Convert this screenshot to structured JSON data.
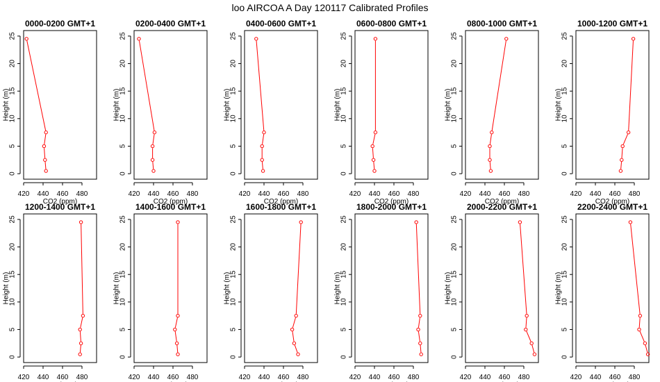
{
  "figure": {
    "title": "loo AIRCOA A  Day 120117  Calibrated Profiles"
  },
  "style": {
    "line_color": "#ff0000",
    "point_color": "#ff0000",
    "axis_color": "#000000"
  },
  "chart_data": [
    {
      "type": "line",
      "title": "0000-0200 GMT+1",
      "xlabel": "CO2 (ppm)",
      "ylabel": "Height (m)",
      "xlim": [
        420,
        495
      ],
      "ylim": [
        -1,
        26
      ],
      "xticks": [
        420,
        440,
        460,
        480
      ],
      "yticks": [
        0,
        5,
        10,
        15,
        20,
        25
      ],
      "points": [
        {
          "x": 443,
          "y": 0.5
        },
        {
          "x": 442,
          "y": 2.5
        },
        {
          "x": 441,
          "y": 5
        },
        {
          "x": 443,
          "y": 7.5
        },
        {
          "x": 423,
          "y": 24.5
        }
      ]
    },
    {
      "type": "line",
      "title": "0200-0400 GMT+1",
      "xlabel": "CO2 (ppm)",
      "ylabel": "Height (m)",
      "xlim": [
        420,
        495
      ],
      "ylim": [
        -1,
        26
      ],
      "xticks": [
        420,
        440,
        460,
        480
      ],
      "yticks": [
        0,
        5,
        10,
        15,
        20,
        25
      ],
      "points": [
        {
          "x": 440,
          "y": 0.5
        },
        {
          "x": 439,
          "y": 2.5
        },
        {
          "x": 439,
          "y": 5
        },
        {
          "x": 441,
          "y": 7.5
        },
        {
          "x": 425,
          "y": 24.5
        }
      ]
    },
    {
      "type": "line",
      "title": "0400-0600 GMT+1",
      "xlabel": "CO2 (ppm)",
      "ylabel": "Height (m)",
      "xlim": [
        420,
        495
      ],
      "ylim": [
        -1,
        26
      ],
      "xticks": [
        420,
        440,
        460,
        480
      ],
      "yticks": [
        0,
        5,
        10,
        15,
        20,
        25
      ],
      "points": [
        {
          "x": 439,
          "y": 0.5
        },
        {
          "x": 438,
          "y": 2.5
        },
        {
          "x": 438,
          "y": 5
        },
        {
          "x": 440,
          "y": 7.5
        },
        {
          "x": 432,
          "y": 24.5
        }
      ]
    },
    {
      "type": "line",
      "title": "0600-0800 GMT+1",
      "xlabel": "CO2 (ppm)",
      "ylabel": "Height (m)",
      "xlim": [
        420,
        495
      ],
      "ylim": [
        -1,
        26
      ],
      "xticks": [
        420,
        440,
        460,
        480
      ],
      "yticks": [
        0,
        5,
        10,
        15,
        20,
        25
      ],
      "points": [
        {
          "x": 440,
          "y": 0.5
        },
        {
          "x": 439,
          "y": 2.5
        },
        {
          "x": 438,
          "y": 5
        },
        {
          "x": 441,
          "y": 7.5
        },
        {
          "x": 441,
          "y": 24.5
        }
      ]
    },
    {
      "type": "line",
      "title": "0800-1000 GMT+1",
      "xlabel": "CO2 (ppm)",
      "ylabel": "Height (m)",
      "xlim": [
        420,
        495
      ],
      "ylim": [
        -1,
        26
      ],
      "xticks": [
        420,
        440,
        460,
        480
      ],
      "yticks": [
        0,
        5,
        10,
        15,
        20,
        25
      ],
      "points": [
        {
          "x": 446,
          "y": 0.5
        },
        {
          "x": 445,
          "y": 2.5
        },
        {
          "x": 445,
          "y": 5
        },
        {
          "x": 447,
          "y": 7.5
        },
        {
          "x": 462,
          "y": 24.5
        }
      ]
    },
    {
      "type": "line",
      "title": "1000-1200 GMT+1",
      "xlabel": "CO2 (ppm)",
      "ylabel": "Height (m)",
      "xlim": [
        420,
        495
      ],
      "ylim": [
        -1,
        26
      ],
      "xticks": [
        420,
        440,
        460,
        480
      ],
      "yticks": [
        0,
        5,
        10,
        15,
        20,
        25
      ],
      "points": [
        {
          "x": 466,
          "y": 0.5
        },
        {
          "x": 467,
          "y": 2.5
        },
        {
          "x": 468,
          "y": 5
        },
        {
          "x": 474,
          "y": 7.5
        },
        {
          "x": 479,
          "y": 24.5
        }
      ]
    },
    {
      "type": "line",
      "title": "1200-1400 GMT+1",
      "xlabel": "CO2 (ppm)",
      "ylabel": "Height (m)",
      "xlim": [
        420,
        495
      ],
      "ylim": [
        -1,
        26
      ],
      "xticks": [
        420,
        440,
        460,
        480
      ],
      "yticks": [
        0,
        5,
        10,
        15,
        20,
        25
      ],
      "points": [
        {
          "x": 478,
          "y": 0.5
        },
        {
          "x": 479,
          "y": 2.5
        },
        {
          "x": 478,
          "y": 5
        },
        {
          "x": 481,
          "y": 7.5
        },
        {
          "x": 479,
          "y": 24.5
        }
      ]
    },
    {
      "type": "line",
      "title": "1400-1600 GMT+1",
      "xlabel": "CO2 (ppm)",
      "ylabel": "Height (m)",
      "xlim": [
        420,
        495
      ],
      "ylim": [
        -1,
        26
      ],
      "xticks": [
        420,
        440,
        460,
        480
      ],
      "yticks": [
        0,
        5,
        10,
        15,
        20,
        25
      ],
      "points": [
        {
          "x": 465,
          "y": 0.5
        },
        {
          "x": 464,
          "y": 2.5
        },
        {
          "x": 462,
          "y": 5
        },
        {
          "x": 465,
          "y": 7.5
        },
        {
          "x": 465,
          "y": 24.5
        }
      ]
    },
    {
      "type": "line",
      "title": "1600-1800 GMT+1",
      "xlabel": "CO2 (ppm)",
      "ylabel": "Height (m)",
      "xlim": [
        420,
        495
      ],
      "ylim": [
        -1,
        26
      ],
      "xticks": [
        420,
        440,
        460,
        480
      ],
      "yticks": [
        0,
        5,
        10,
        15,
        20,
        25
      ],
      "points": [
        {
          "x": 475,
          "y": 0.5
        },
        {
          "x": 471,
          "y": 2.5
        },
        {
          "x": 469,
          "y": 5
        },
        {
          "x": 473,
          "y": 7.5
        },
        {
          "x": 478,
          "y": 24.5
        }
      ]
    },
    {
      "type": "line",
      "title": "1800-2000 GMT+1",
      "xlabel": "CO2 (ppm)",
      "ylabel": "Height (m)",
      "xlim": [
        420,
        495
      ],
      "ylim": [
        -1,
        26
      ],
      "xticks": [
        420,
        440,
        460,
        480
      ],
      "yticks": [
        0,
        5,
        10,
        15,
        20,
        25
      ],
      "points": [
        {
          "x": 488,
          "y": 0.5
        },
        {
          "x": 487,
          "y": 2.5
        },
        {
          "x": 485,
          "y": 5
        },
        {
          "x": 487,
          "y": 7.5
        },
        {
          "x": 483,
          "y": 24.5
        }
      ]
    },
    {
      "type": "line",
      "title": "2000-2200 GMT+1",
      "xlabel": "CO2 (ppm)",
      "ylabel": "Height (m)",
      "xlim": [
        420,
        495
      ],
      "ylim": [
        -1,
        26
      ],
      "xticks": [
        420,
        440,
        460,
        480
      ],
      "yticks": [
        0,
        5,
        10,
        15,
        20,
        25
      ],
      "points": [
        {
          "x": 491,
          "y": 0.5
        },
        {
          "x": 488,
          "y": 2.5
        },
        {
          "x": 482,
          "y": 5
        },
        {
          "x": 483,
          "y": 7.5
        },
        {
          "x": 476,
          "y": 24.5
        }
      ]
    },
    {
      "type": "line",
      "title": "2200-2400 GMT+1",
      "xlabel": "CO2 (ppm)",
      "ylabel": "Height (m)",
      "xlim": [
        420,
        495
      ],
      "ylim": [
        -1,
        26
      ],
      "xticks": [
        420,
        440,
        460,
        480
      ],
      "yticks": [
        0,
        5,
        10,
        15,
        20,
        25
      ],
      "points": [
        {
          "x": 494,
          "y": 0.5
        },
        {
          "x": 491,
          "y": 2.5
        },
        {
          "x": 485,
          "y": 5
        },
        {
          "x": 486,
          "y": 7.5
        },
        {
          "x": 476,
          "y": 24.5
        }
      ]
    }
  ]
}
